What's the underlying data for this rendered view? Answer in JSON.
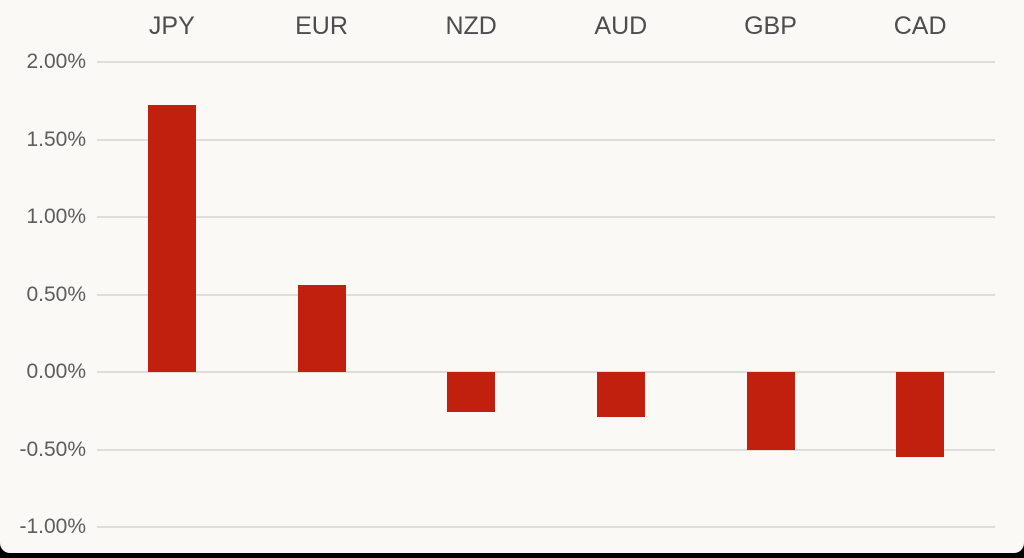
{
  "chart_data": {
    "type": "bar",
    "categories": [
      "JPY",
      "EUR",
      "NZD",
      "AUD",
      "GBP",
      "CAD"
    ],
    "values": [
      1.72,
      0.56,
      -0.26,
      -0.29,
      -0.5,
      -0.55
    ],
    "value_unit": "%",
    "title": "",
    "xlabel": "",
    "ylabel": "",
    "ylim": [
      -1.0,
      2.0
    ],
    "ytick_step": 0.5,
    "ytick_labels": [
      "2.00%",
      "1.50%",
      "1.00%",
      "0.50%",
      "0.00%",
      "-0.50%",
      "-1.00%"
    ],
    "grid": true,
    "legend_position": "none",
    "category_label_position": "top",
    "series_color": "#c2200f"
  },
  "colors": {
    "card_background": "#faf9f6",
    "frame_background": "#000000",
    "bar": "#c2200f",
    "gridline": "#deded9",
    "ytick_label": "#5d5d5d",
    "category_label": "#4d4d4d"
  }
}
